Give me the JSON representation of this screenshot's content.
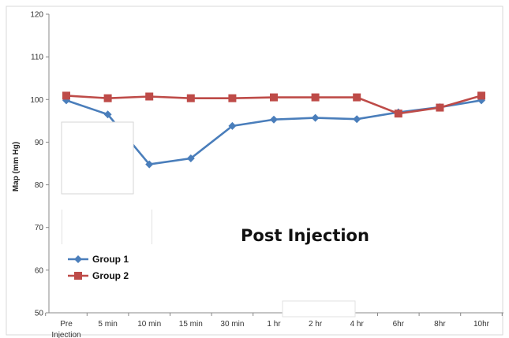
{
  "chart_data": {
    "type": "line",
    "title": "",
    "xlabel": "",
    "ylabel": "Map (mm Hg)",
    "ylim": [
      50,
      120
    ],
    "yticks": [
      50,
      60,
      70,
      80,
      90,
      100,
      110,
      120
    ],
    "categories": [
      "Pre Injection",
      "5 min",
      "10 min",
      "15 min",
      "30 min",
      "1 hr",
      "2 hr",
      "4 hr",
      "6hr",
      "8hr",
      "10hr"
    ],
    "series": [
      {
        "name": "Group 1",
        "color": "#4a7ebb",
        "marker": "diamond",
        "values": [
          99.8,
          96.5,
          84.8,
          86.2,
          93.8,
          95.3,
          95.7,
          95.4,
          97.0,
          98.2,
          99.8
        ]
      },
      {
        "name": "Group 2",
        "color": "#be4b48",
        "marker": "square",
        "values": [
          100.9,
          100.3,
          100.7,
          100.3,
          100.3,
          100.5,
          100.5,
          100.5,
          96.7,
          98.1,
          100.9
        ]
      }
    ],
    "annotation": "Post Injection",
    "legend_position": "bottom-left",
    "grid": false
  }
}
